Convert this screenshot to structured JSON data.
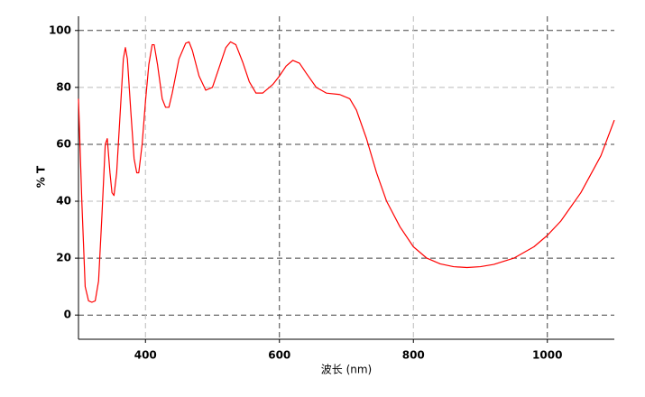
{
  "chart_data": {
    "type": "line",
    "x_label": "波长 (nm)",
    "y_label": "% T",
    "xlim": [
      300,
      1100
    ],
    "ylim": [
      -8.5,
      105
    ],
    "xticks": [
      400,
      600,
      800,
      1000
    ],
    "yticks": [
      0,
      20,
      40,
      60,
      80,
      100
    ],
    "grid": true,
    "x": [
      300,
      305,
      310,
      315,
      320,
      325,
      330,
      335,
      340,
      343,
      347,
      350,
      353,
      357,
      362,
      367,
      370,
      373,
      378,
      383,
      387,
      390,
      395,
      400,
      405,
      410,
      413,
      418,
      425,
      430,
      435,
      440,
      450,
      460,
      465,
      470,
      480,
      490,
      500,
      510,
      520,
      527,
      535,
      545,
      555,
      565,
      575,
      590,
      600,
      610,
      620,
      630,
      640,
      655,
      670,
      690,
      705,
      715,
      730,
      745,
      760,
      780,
      800,
      820,
      840,
      860,
      880,
      900,
      920,
      950,
      980,
      1000,
      1020,
      1050,
      1080,
      1100
    ],
    "series": [
      {
        "color": "#ff0000",
        "values": [
          76,
          40,
          10,
          5,
          4.5,
          5,
          12,
          35,
          60,
          62,
          50,
          43,
          42,
          50,
          70,
          90,
          94,
          90,
          72,
          55,
          50,
          50,
          60,
          75,
          88,
          95,
          95,
          88,
          76,
          73,
          73,
          78,
          90,
          95.5,
          96,
          93,
          84,
          79,
          80,
          87,
          94,
          96,
          95,
          89,
          82,
          78,
          78,
          81,
          84,
          87.5,
          89.5,
          88.5,
          85,
          80,
          78,
          77.5,
          76,
          72,
          62,
          50,
          40,
          31,
          24,
          20,
          18,
          17,
          16.7,
          17,
          17.8,
          20,
          24,
          28,
          33,
          43,
          56,
          68.5
        ]
      }
    ]
  }
}
